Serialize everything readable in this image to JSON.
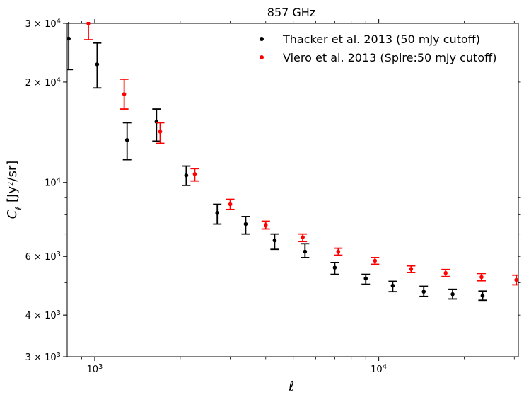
{
  "chart_data": {
    "type": "scatter",
    "title": "857 GHz",
    "xlabel": "ℓ",
    "ylabel": "C_ℓ [Jy²/sr]",
    "xscale": "log",
    "yscale": "log",
    "xlim": [
      800,
      31000
    ],
    "ylim": [
      3000,
      30000
    ],
    "x_ticks": [
      {
        "value": 1000,
        "base": "10",
        "exp": "3"
      },
      {
        "value": 10000,
        "base": "10",
        "exp": "4"
      }
    ],
    "y_ticks": [
      {
        "value": 3000,
        "mant": "3",
        "exp": "3"
      },
      {
        "value": 4000,
        "mant": "4",
        "exp": "3"
      },
      {
        "value": 6000,
        "mant": "6",
        "exp": "3"
      },
      {
        "value": 10000,
        "mant": "",
        "exp": "4"
      },
      {
        "value": 20000,
        "mant": "2",
        "exp": "4"
      },
      {
        "value": 30000,
        "mant": "3",
        "exp": "4"
      }
    ],
    "legend_position": "top-right",
    "grid": false,
    "series": [
      {
        "name": "Thacker et al. 2013 (50 mJy cutoff)",
        "color": "#000000",
        "points": [
          {
            "x": 810,
            "y": 27000,
            "ylo": 21800,
            "yhi": 33500
          },
          {
            "x": 1020,
            "y": 22600,
            "ylo": 19200,
            "yhi": 26200
          },
          {
            "x": 1300,
            "y": 13400,
            "ylo": 11700,
            "yhi": 15100
          },
          {
            "x": 1650,
            "y": 15200,
            "ylo": 13300,
            "yhi": 16600
          },
          {
            "x": 2100,
            "y": 10500,
            "ylo": 9800,
            "yhi": 11200
          },
          {
            "x": 2700,
            "y": 8100,
            "ylo": 7500,
            "yhi": 8600
          },
          {
            "x": 3400,
            "y": 7500,
            "ylo": 7000,
            "yhi": 7900
          },
          {
            "x": 4300,
            "y": 6700,
            "ylo": 6300,
            "yhi": 7000
          },
          {
            "x": 5500,
            "y": 6200,
            "ylo": 5950,
            "yhi": 6550
          },
          {
            "x": 7000,
            "y": 5550,
            "ylo": 5300,
            "yhi": 5750
          },
          {
            "x": 9000,
            "y": 5150,
            "ylo": 4950,
            "yhi": 5300
          },
          {
            "x": 11200,
            "y": 4900,
            "ylo": 4700,
            "yhi": 5050
          },
          {
            "x": 14400,
            "y": 4700,
            "ylo": 4550,
            "yhi": 4880
          },
          {
            "x": 18200,
            "y": 4620,
            "ylo": 4470,
            "yhi": 4780
          },
          {
            "x": 23200,
            "y": 4570,
            "ylo": 4430,
            "yhi": 4720
          }
        ]
      },
      {
        "name": "Viero et al. 2013 (Spire:50 mJy cutoff)",
        "color": "#ff0000",
        "points": [
          {
            "x": 950,
            "y": 30000,
            "ylo": 26800,
            "yhi": 31500
          },
          {
            "x": 1270,
            "y": 18400,
            "ylo": 16600,
            "yhi": 20400
          },
          {
            "x": 1700,
            "y": 14200,
            "ylo": 13100,
            "yhi": 15100
          },
          {
            "x": 2250,
            "y": 10600,
            "ylo": 10100,
            "yhi": 11000
          },
          {
            "x": 3000,
            "y": 8600,
            "ylo": 8300,
            "yhi": 8900
          },
          {
            "x": 4000,
            "y": 7450,
            "ylo": 7250,
            "yhi": 7650
          },
          {
            "x": 5400,
            "y": 6850,
            "ylo": 6650,
            "yhi": 7000
          },
          {
            "x": 7200,
            "y": 6200,
            "ylo": 6050,
            "yhi": 6350
          },
          {
            "x": 9700,
            "y": 5820,
            "ylo": 5680,
            "yhi": 5950
          },
          {
            "x": 13000,
            "y": 5500,
            "ylo": 5370,
            "yhi": 5620
          },
          {
            "x": 17200,
            "y": 5350,
            "ylo": 5220,
            "yhi": 5480
          },
          {
            "x": 23000,
            "y": 5200,
            "ylo": 5070,
            "yhi": 5330
          },
          {
            "x": 30500,
            "y": 5100,
            "ylo": 4930,
            "yhi": 5270
          }
        ]
      }
    ]
  }
}
